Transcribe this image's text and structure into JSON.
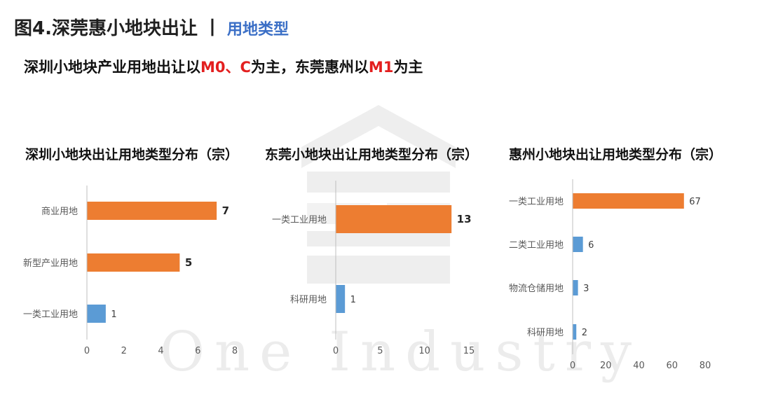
{
  "header": {
    "title": "图4.深莞惠小地块出让",
    "separator": "丨",
    "subtitle": "用地类型"
  },
  "headline": {
    "part1": "深圳小地块产业用地出让以",
    "highlight1": "M0、C",
    "part2": "为主，东莞惠州以",
    "highlight2": "M1",
    "part3": "为主"
  },
  "watermark": "One Industry",
  "colors": {
    "orange": "#ed7d31",
    "blue": "#5b9bd5",
    "axis": "#bfbfbf",
    "highlight_red": "#e31f1f",
    "subtitle_blue": "#3b6fc6"
  },
  "chart_data": [
    {
      "type": "bar",
      "orientation": "horizontal",
      "title": "深圳小地块出让用地类型分布（宗）",
      "categories": [
        "商业用地",
        "新型产业用地",
        "一类工业用地"
      ],
      "values": [
        7,
        5,
        1
      ],
      "colors": [
        "#ed7d31",
        "#ed7d31",
        "#5b9bd5"
      ],
      "bold_labels": [
        true,
        true,
        false
      ],
      "xlim": [
        0,
        8
      ],
      "xticks": [
        0,
        2,
        4,
        6,
        8
      ]
    },
    {
      "type": "bar",
      "orientation": "horizontal",
      "title": "东莞小地块出让用地类型分布（宗）",
      "categories": [
        "一类工业用地",
        "科研用地"
      ],
      "values": [
        13,
        1
      ],
      "colors": [
        "#ed7d31",
        "#5b9bd5"
      ],
      "bold_labels": [
        true,
        false
      ],
      "xlim": [
        0,
        15
      ],
      "xticks": [
        0,
        5,
        10,
        15
      ]
    },
    {
      "type": "bar",
      "orientation": "horizontal",
      "title": "惠州小地块出让用地类型分布（宗）",
      "categories": [
        "一类工业用地",
        "二类工业用地",
        "物流仓储用地",
        "科研用地"
      ],
      "values": [
        67,
        6,
        3,
        2
      ],
      "colors": [
        "#ed7d31",
        "#5b9bd5",
        "#5b9bd5",
        "#5b9bd5"
      ],
      "bold_labels": [
        false,
        false,
        false,
        false
      ],
      "xlim": [
        0,
        80
      ],
      "xticks": [
        0,
        20,
        40,
        60,
        80
      ]
    }
  ]
}
